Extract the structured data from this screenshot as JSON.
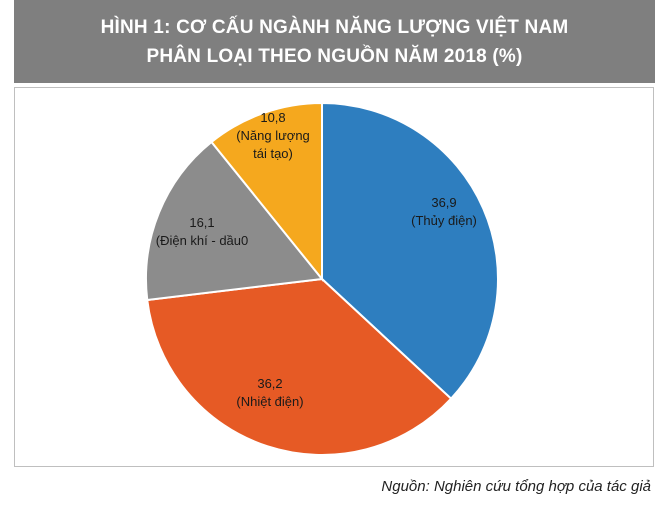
{
  "title": {
    "line1": "HÌNH 1: CƠ CẤU NGÀNH NĂNG LƯỢNG VIỆT NAM",
    "line2": "PHÂN LOẠI THEO NGUỒN NĂM 2018 (%)"
  },
  "source": "Nguồn: Nghiên cứu tổng hợp của tác giả",
  "chart_data": {
    "type": "pie",
    "title": "HÌNH 1: CƠ CẤU NGÀNH NĂNG LƯỢNG VIỆT NAM PHÂN LOẠI THEO NGUỒN NĂM 2018 (%)",
    "start_angle_deg": 0,
    "direction": "clockwise",
    "slices": [
      {
        "label": "(Thủy điện)",
        "value": 36.9,
        "value_label": "36,9",
        "color": "#2e7ebf"
      },
      {
        "label": "(Nhiệt điện)",
        "value": 36.2,
        "value_label": "36,2",
        "color": "#e65a25"
      },
      {
        "label": "(Điện khí - dầu0",
        "value": 16.1,
        "value_label": "16,1",
        "color": "#8c8c8c"
      },
      {
        "label": "(Năng lượng tái tạo)",
        "value": 10.8,
        "value_label": "10,8",
        "color": "#f5a81e"
      }
    ],
    "label_lines": [
      [
        "36,9",
        "(Thủy điện)"
      ],
      [
        "36,2",
        "(Nhiệt điện)"
      ],
      [
        "16,1",
        "(Điện khí - dầu0"
      ],
      [
        "10,8",
        "(Năng lượng",
        "tái tạo)"
      ]
    ]
  }
}
